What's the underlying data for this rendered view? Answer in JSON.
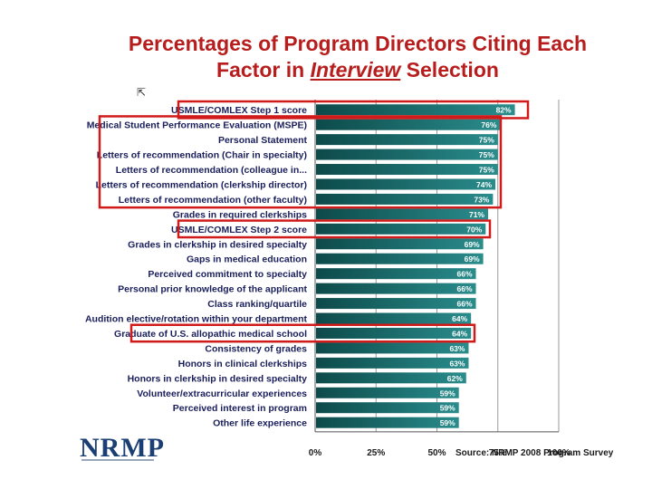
{
  "title": {
    "line1": "Percentages of Program Directors Citing Each",
    "line2_prefix": "Factor in ",
    "line2_emphasis": "Interview",
    "line2_suffix": " Selection"
  },
  "logo": {
    "text": "NRMP"
  },
  "source": "Source: NRMP 2008 Program Survey",
  "chart_data": {
    "type": "bar",
    "orientation": "horizontal",
    "categories": [
      "USMLE/COMLEX Step 1 score",
      "Medical Student Performance Evaluation (MSPE)",
      "Personal Statement",
      "Letters of recommendation (Chair in specialty)",
      "Letters of recommendation (colleague in...",
      "Letters of recommendation (clerkship director)",
      "Letters of recommendation (other faculty)",
      "Grades in required clerkships",
      "USMLE/COMLEX Step 2 score",
      "Grades in clerkship in desired specialty",
      "Gaps in medical education",
      "Perceived commitment to specialty",
      "Personal prior knowledge of the applicant",
      "Class ranking/quartile",
      "Audition elective/rotation within your department",
      "Graduate of U.S. allopathic medical school",
      "Consistency of grades",
      "Honors in clinical clerkships",
      "Honors in clerkship in desired specialty",
      "Volunteer/extracurricular experiences",
      "Perceived interest in program",
      "Other life experience"
    ],
    "values": [
      82,
      76,
      75,
      75,
      75,
      74,
      73,
      71,
      70,
      69,
      69,
      66,
      66,
      66,
      64,
      64,
      63,
      63,
      62,
      59,
      59,
      59
    ],
    "value_labels": [
      "82%",
      "76%",
      "75%",
      "75%",
      "75%",
      "74%",
      "73%",
      "71%",
      "70%",
      "69%",
      "69%",
      "66%",
      "66%",
      "66%",
      "64%",
      "64%",
      "63%",
      "63%",
      "62%",
      "59%",
      "59%",
      "59%"
    ],
    "xlim": [
      0,
      100
    ],
    "xticks": [
      0,
      25,
      50,
      75,
      100
    ],
    "xtick_labels": [
      "0%",
      "25%",
      "50%",
      "75%",
      "100%"
    ],
    "highlighted_groups": [
      [
        0,
        0
      ],
      [
        1,
        6
      ],
      [
        8,
        8
      ],
      [
        15,
        15
      ]
    ],
    "colors": {
      "bar_dark": "#0d4a4a",
      "bar_light": "#2a8c8c",
      "label": "#1a1f5c",
      "highlight": "#d11a1a",
      "grid": "#9a9a9a"
    }
  }
}
